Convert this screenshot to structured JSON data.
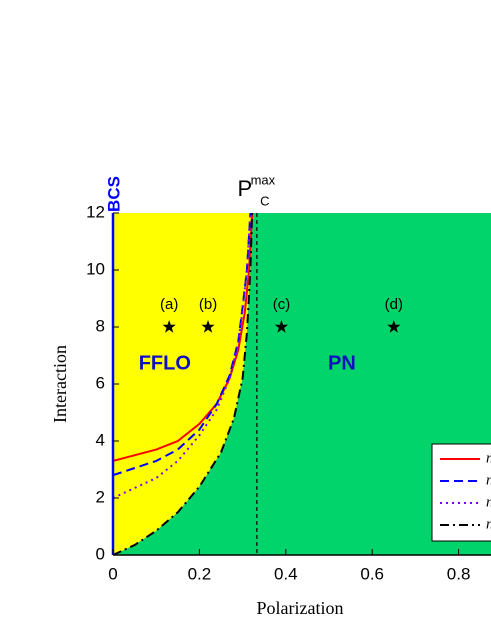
{
  "chart_data": {
    "type": "line",
    "x_label": "Polarization",
    "y_label": "Interaction",
    "xlim": [
      0,
      0.875
    ],
    "ylim": [
      0,
      12
    ],
    "xticks": [
      0,
      0.2,
      0.4,
      0.6,
      0.8
    ],
    "yticks": [
      0,
      2,
      4,
      6,
      8,
      10,
      12
    ],
    "regions": {
      "left": {
        "label": "FFLO",
        "color": "#ffff00"
      },
      "right": {
        "label": "PN",
        "color": "#00d46a"
      }
    },
    "left_edge_label": "BCS",
    "reference_line": {
      "x": 0.333,
      "label": "P",
      "label_sub": "C",
      "label_sup": "max"
    },
    "legend": "lower right",
    "series": [
      {
        "name": "n",
        "color": "#ff0000",
        "dash": "solid",
        "x": [
          0,
          0.1,
          0.15,
          0.2,
          0.24,
          0.27,
          0.29,
          0.305,
          0.315,
          0.322
        ],
        "values": [
          3.3,
          3.7,
          4.0,
          4.6,
          5.3,
          6.2,
          7.2,
          8.5,
          10,
          12
        ]
      },
      {
        "name": "n",
        "color": "#0000ff",
        "dash": "dashed",
        "x": [
          0,
          0.1,
          0.15,
          0.2,
          0.24,
          0.27,
          0.29,
          0.3,
          0.31,
          0.318
        ],
        "values": [
          2.8,
          3.3,
          3.7,
          4.4,
          5.3,
          6.3,
          7.5,
          8.7,
          10,
          12
        ]
      },
      {
        "name": "n",
        "color": "#8000ff",
        "dash": "dotted",
        "x": [
          0,
          0.1,
          0.15,
          0.2,
          0.24,
          0.27,
          0.29,
          0.3,
          0.31,
          0.318
        ],
        "values": [
          2.0,
          2.7,
          3.3,
          4.2,
          5.1,
          6.2,
          7.4,
          8.6,
          10,
          12
        ]
      },
      {
        "name": "n",
        "color": "#000000",
        "dash": "dashdot",
        "boundary": true,
        "x": [
          0,
          0.05,
          0.1,
          0.15,
          0.2,
          0.25,
          0.28,
          0.3,
          0.31,
          0.318,
          0.322
        ],
        "values": [
          0,
          0.35,
          0.85,
          1.5,
          2.4,
          3.6,
          4.8,
          6.2,
          7.8,
          10,
          12
        ]
      }
    ],
    "points": [
      {
        "x": 0.13,
        "y": 8,
        "label": "(a)"
      },
      {
        "x": 0.22,
        "y": 8,
        "label": "(b)"
      },
      {
        "x": 0.39,
        "y": 8,
        "label": "(c)"
      },
      {
        "x": 0.65,
        "y": 8,
        "label": "(d)"
      }
    ]
  }
}
